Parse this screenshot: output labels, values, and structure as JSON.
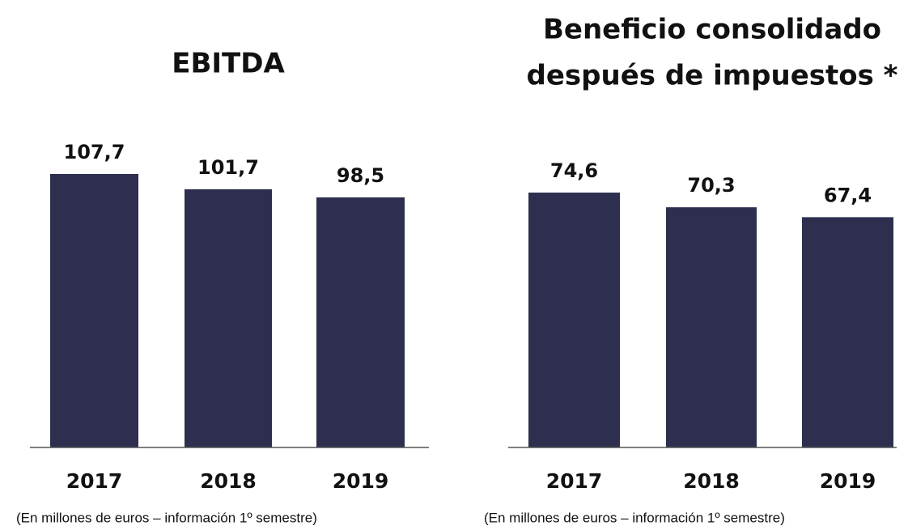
{
  "chart_data": [
    {
      "type": "bar",
      "title": [
        "EBITDA"
      ],
      "categories": [
        "2017",
        "2018",
        "2019"
      ],
      "values": [
        107.7,
        101.7,
        98.5
      ],
      "value_labels": [
        "107,7",
        "101,7",
        "98,5"
      ],
      "color": "#2e2f4f",
      "note": "(En millones de euros – información 1º semestre)"
    },
    {
      "type": "bar",
      "title": [
        "Beneficio consolidado",
        "después de impuestos *"
      ],
      "categories": [
        "2017",
        "2018",
        "2019"
      ],
      "values": [
        74.6,
        70.3,
        67.4
      ],
      "value_labels": [
        "74,6",
        "70,3",
        "67,4"
      ],
      "color": "#2e2f4f",
      "note": "(En millones de euros – información 1º semestre)"
    }
  ]
}
